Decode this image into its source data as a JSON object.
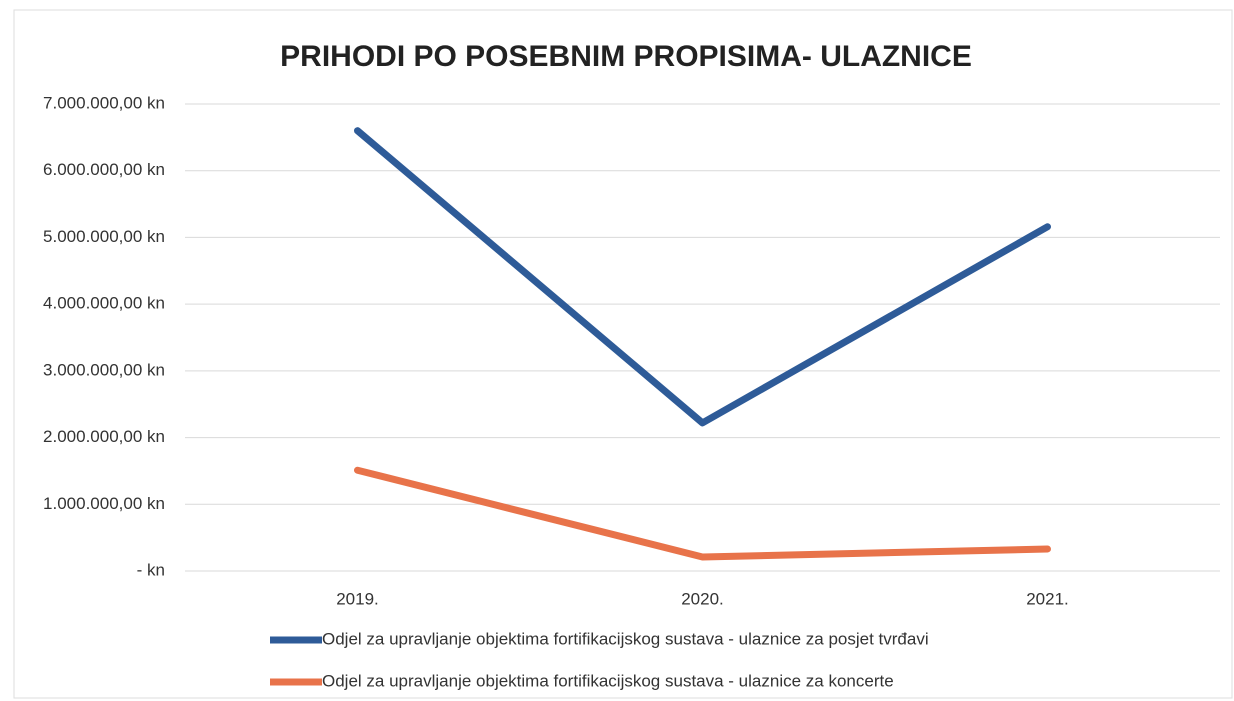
{
  "chart_data": {
    "type": "line",
    "title": "PRIHODI PO POSEBNIM PROPISIMA- ULAZNICE",
    "categories": [
      "2019.",
      "2020.",
      "2021."
    ],
    "series": [
      {
        "name": "Odjel za upravljanje objektima fortifikacijskog sustava - ulaznice za posjet tvrđavi",
        "color": "#2e5b98",
        "values": [
          6600000,
          2220000,
          5160000
        ]
      },
      {
        "name": "Odjel za upravljanje objektima fortifikacijskog sustava - ulaznice za koncerte",
        "color": "#e8734a",
        "values": [
          1510000,
          210000,
          330000
        ]
      }
    ],
    "ylim": [
      0,
      7000000
    ],
    "yticks": [
      {
        "value": 0,
        "label": "-   kn"
      },
      {
        "value": 1000000,
        "label": "1.000.000,00 kn"
      },
      {
        "value": 2000000,
        "label": "2.000.000,00 kn"
      },
      {
        "value": 3000000,
        "label": "3.000.000,00 kn"
      },
      {
        "value": 4000000,
        "label": "4.000.000,00 kn"
      },
      {
        "value": 5000000,
        "label": "5.000.000,00 kn"
      },
      {
        "value": 6000000,
        "label": "6.000.000,00 kn"
      },
      {
        "value": 7000000,
        "label": "7.000.000,00 kn"
      }
    ],
    "grid": true,
    "legend": "bottom"
  }
}
